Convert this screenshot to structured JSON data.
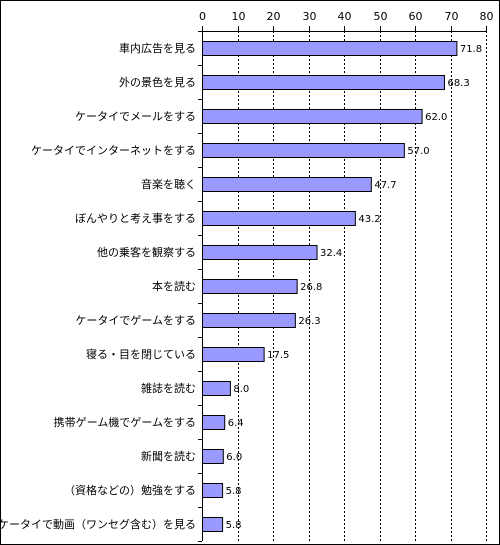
{
  "chart_data": {
    "type": "bar",
    "orientation": "horizontal",
    "title": "",
    "xlabel": "",
    "ylabel": "",
    "categories": [
      "車内広告を見る",
      "外の景色を見る",
      "ケータイでメールをする",
      "ケータイでインターネットをする",
      "音楽を聴く",
      "ぼんやりと考え事をする",
      "他の乗客を観察する",
      "本を読む",
      "ケータイでゲームをする",
      "寝る・目を閉じている",
      "雑誌を読む",
      "携帯ゲーム機でゲームをする",
      "新聞を読む",
      "（資格などの）勉強をする",
      "ケータイで動画（ワンセグ含む）を見る"
    ],
    "values": [
      71.8,
      68.3,
      62.0,
      57.0,
      47.7,
      43.2,
      32.4,
      26.8,
      26.3,
      17.5,
      8.0,
      6.4,
      6.0,
      5.8,
      5.8
    ],
    "value_labels": [
      "71.8",
      "68.3",
      "62.0",
      "57.0",
      "47.7",
      "43.2",
      "32.4",
      "26.8",
      "26.3",
      "17.5",
      "8.0",
      "6.4",
      "6.0",
      "5.8",
      "5.8"
    ],
    "xlim": [
      0,
      80
    ],
    "ticks": [
      0,
      10,
      20,
      30,
      40,
      50,
      60,
      70,
      80
    ],
    "axis_position": "top",
    "grid": true,
    "legend": "none",
    "colors": {
      "bar_fill": "#9999ff",
      "bar_stroke": "#000000",
      "grid": "#000000",
      "text": "#000000"
    }
  }
}
